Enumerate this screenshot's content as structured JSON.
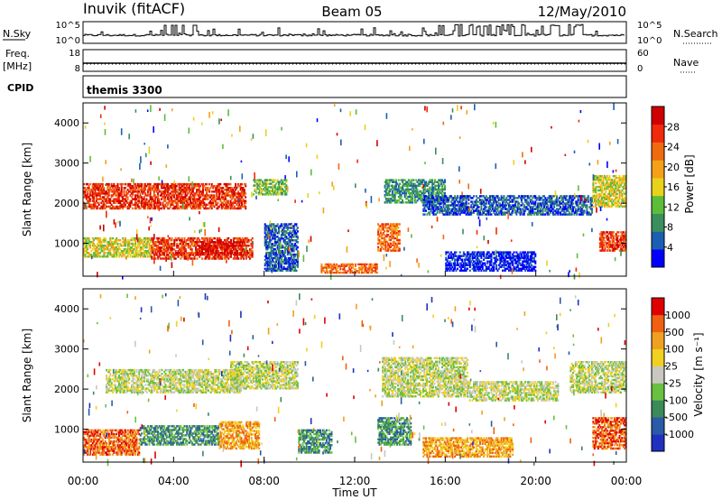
{
  "header": {
    "station": "Inuvik (fitACF)",
    "beam": "Beam 05",
    "date": "12/May/2010"
  },
  "strip_labels": {
    "nsky": "N.Sky",
    "nsearch": "N.Search",
    "freq_line1": "Freq.",
    "freq_line2": "[MHz]",
    "nave": "Nave",
    "cpid": "CPID",
    "nsky_ticks": [
      "10^5",
      "10^0"
    ],
    "nsearch_ticks": [
      "10^5",
      "10^0"
    ],
    "freq_ticks": [
      "18",
      "8"
    ],
    "nave_ticks": [
      "60",
      "0"
    ],
    "cpid_value": "themis 3300"
  },
  "colors": {
    "power": [
      "#0000ff",
      "#1a5fb4",
      "#3a8f5c",
      "#5bbd3a",
      "#e8d21a",
      "#f5a018",
      "#f06a10",
      "#f02a0a",
      "#d00000"
    ],
    "velocity": [
      "#2030c0",
      "#2a5aa8",
      "#3a8a5a",
      "#6ac040",
      "#c8c8c0",
      "#f0d020",
      "#f0a020",
      "#f06010",
      "#e00000"
    ],
    "ground": "#c8c8c0"
  },
  "chart_data": [
    {
      "type": "heatmap",
      "name": "power",
      "xlabel": "",
      "ylabel": "Slant Range [km]",
      "colorbar_label": "Power [dB]",
      "colorbar_ticks": [
        "4",
        "8",
        "12",
        "16",
        "20",
        "24",
        "28"
      ],
      "x_ticks": [
        "00:00",
        "04:00",
        "08:00",
        "12:00",
        "16:00",
        "20:00",
        "00:00"
      ],
      "y_ticks": [
        "1000",
        "2000",
        "3000",
        "4000"
      ],
      "xlim_hours": [
        0,
        24
      ],
      "ylim_km": [
        180,
        4500
      ],
      "regions": [
        {
          "t0": 0.0,
          "t1": 7.2,
          "r0": 1850,
          "r1": 2500,
          "level": 7
        },
        {
          "t0": 0.0,
          "t1": 3.0,
          "r0": 650,
          "r1": 1150,
          "level": 4
        },
        {
          "t0": 3.0,
          "t1": 7.5,
          "r0": 600,
          "r1": 1150,
          "level": 7
        },
        {
          "t0": 5.0,
          "t1": 7.0,
          "r0": 700,
          "r1": 1050,
          "level": 8
        },
        {
          "t0": 7.5,
          "t1": 9.0,
          "r0": 2200,
          "r1": 2600,
          "level": 3
        },
        {
          "t0": 8.0,
          "t1": 9.5,
          "r0": 300,
          "r1": 1500,
          "level": 1
        },
        {
          "t0": 13.0,
          "t1": 14.0,
          "r0": 800,
          "r1": 1500,
          "level": 6
        },
        {
          "t0": 13.3,
          "t1": 16.0,
          "r0": 2000,
          "r1": 2600,
          "level": 2
        },
        {
          "t0": 15.0,
          "t1": 22.5,
          "r0": 1700,
          "r1": 2200,
          "level": 1
        },
        {
          "t0": 22.5,
          "t1": 24.0,
          "r0": 1900,
          "r1": 2700,
          "level": 4
        },
        {
          "t0": 22.8,
          "t1": 24.0,
          "r0": 800,
          "r1": 1300,
          "level": 7
        },
        {
          "t0": 16.0,
          "t1": 20.0,
          "r0": 300,
          "r1": 800,
          "level": 0
        },
        {
          "t0": 10.5,
          "t1": 13.0,
          "r0": 250,
          "r1": 500,
          "level": 6
        }
      ]
    },
    {
      "type": "heatmap",
      "name": "velocity",
      "xlabel": "Time UT",
      "ylabel": "Slant Range [km]",
      "colorbar_label": "Velocity [m s⁻¹]",
      "colorbar_ticks": [
        "-1000",
        "-500",
        "-100",
        "-25",
        "25",
        "100",
        "500",
        "1000"
      ],
      "x_ticks": [
        "00:00",
        "04:00",
        "08:00",
        "12:00",
        "16:00",
        "20:00",
        "00:00"
      ],
      "y_ticks": [
        "1000",
        "2000",
        "3000",
        "4000"
      ],
      "xlim_hours": [
        0,
        24
      ],
      "ylim_km": [
        180,
        4500
      ],
      "regions": [
        {
          "t0": 1.0,
          "t1": 7.0,
          "r0": 1900,
          "r1": 2500,
          "level": 4
        },
        {
          "t0": 6.5,
          "t1": 9.5,
          "r0": 2000,
          "r1": 2700,
          "level": 4
        },
        {
          "t0": 0.0,
          "t1": 2.5,
          "r0": 350,
          "r1": 1000,
          "level": 7
        },
        {
          "t0": 2.5,
          "t1": 6.0,
          "r0": 600,
          "r1": 1100,
          "level": 2
        },
        {
          "t0": 6.0,
          "t1": 7.8,
          "r0": 500,
          "r1": 1200,
          "level": 6
        },
        {
          "t0": 13.2,
          "t1": 17.0,
          "r0": 1800,
          "r1": 2800,
          "level": 4
        },
        {
          "t0": 17.0,
          "t1": 21.0,
          "r0": 1700,
          "r1": 2200,
          "level": 4
        },
        {
          "t0": 21.5,
          "t1": 24.0,
          "r0": 1900,
          "r1": 2700,
          "level": 4
        },
        {
          "t0": 13.0,
          "t1": 14.5,
          "r0": 600,
          "r1": 1300,
          "level": 2
        },
        {
          "t0": 9.5,
          "t1": 11.0,
          "r0": 400,
          "r1": 1000,
          "level": 2
        },
        {
          "t0": 22.5,
          "t1": 24.0,
          "r0": 500,
          "r1": 1300,
          "level": 7
        },
        {
          "t0": 15.0,
          "t1": 19.0,
          "r0": 300,
          "r1": 800,
          "level": 6
        }
      ]
    }
  ]
}
